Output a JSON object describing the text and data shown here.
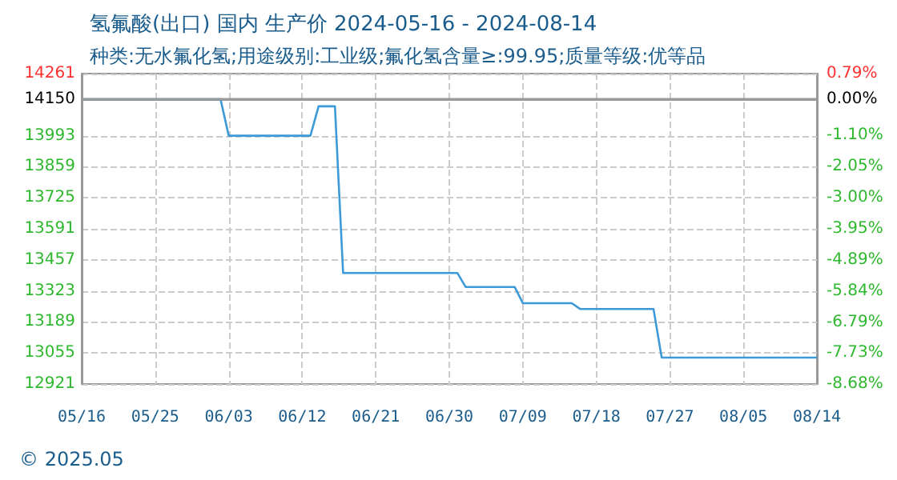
{
  "chart_data": {
    "type": "line",
    "title": "氢氟酸(出口) 国内 生产价 2024-05-16 - 2024-08-14",
    "subtitle": "种类:无水氟化氢;用途级别:工业级;氟化氢含量≥:99.95;质量等级:优等品",
    "x": [
      "--05-16",
      "--06-02",
      "--06-03",
      "--06-13",
      "--06-14",
      "--06-16",
      "--06-17",
      "--07-01",
      "--07-02",
      "--07-08",
      "--07-09",
      "--07-15",
      "--07-16",
      "--07-25",
      "--07-26",
      "--08-14"
    ],
    "series": [
      {
        "color": "#3d9ad8",
        "values": [
          14150,
          14150,
          13993,
          13993,
          14120,
          14120,
          13400,
          13400,
          13340,
          13340,
          13270,
          13270,
          13245,
          13245,
          13035,
          13035
        ]
      }
    ],
    "xlim": [
      "--05-16",
      "--08-14"
    ],
    "xticks": [
      {
        "value": "--05-16",
        "label": "05/16"
      },
      {
        "value": "--05-25",
        "label": "05/25"
      },
      {
        "value": "--06-03",
        "label": "06/03"
      },
      {
        "value": "--06-12",
        "label": "06/12"
      },
      {
        "value": "--06-21",
        "label": "06/21"
      },
      {
        "value": "--06-30",
        "label": "06/30"
      },
      {
        "value": "--07-09",
        "label": "07/09"
      },
      {
        "value": "--07-18",
        "label": "07/18"
      },
      {
        "value": "--07-27",
        "label": "07/27"
      },
      {
        "value": "--08-05",
        "label": "08/05"
      },
      {
        "value": "--08-14",
        "label": "08/14"
      }
    ],
    "ylim": [
      12921,
      14261
    ],
    "yticks": [
      12921,
      13055,
      13189,
      13323,
      13457,
      13591,
      13725,
      13859,
      13993,
      14150,
      14261
    ],
    "y2lim": [
      -8.68,
      0.79
    ],
    "y2ticks": [
      {
        "value": -8.68,
        "label": "-8.68%"
      },
      {
        "value": -7.73,
        "label": "-7.73%"
      },
      {
        "value": -6.79,
        "label": "-6.79%"
      },
      {
        "value": -5.84,
        "label": "-5.84%"
      },
      {
        "value": -4.89,
        "label": "-4.89%"
      },
      {
        "value": -3.95,
        "label": "-3.95%"
      },
      {
        "value": -3.0,
        "label": "-3.00%"
      },
      {
        "value": -2.05,
        "label": "-2.05%"
      },
      {
        "value": -1.1,
        "label": "-1.10%"
      },
      {
        "value": 0,
        "label": "0.00%"
      },
      {
        "value": 0.79,
        "label": "0.79%"
      }
    ],
    "ref_lines": [
      {
        "axis": "y",
        "value": 14150,
        "color": "#999999"
      }
    ],
    "annotations": [
      "© 2025.05"
    ],
    "grid": true,
    "line_style": "solid",
    "marker": "none"
  }
}
